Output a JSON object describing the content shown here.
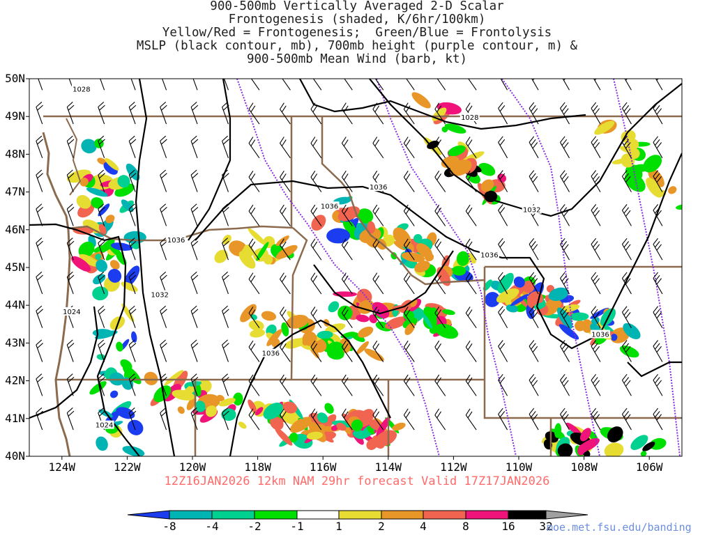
{
  "title": {
    "line1": "900-500mb Vertically Averaged 2-D Scalar",
    "line2": "Frontogenesis (shaded, K/6hr/100km)",
    "line3": "Yellow/Red = Frontogenesis;  Green/Blue = Frontolysis",
    "line4": "MSLP (black contour, mb), 700mb height (purple contour, m) &",
    "line5": "900-500mb Mean Wind (barb, kt)"
  },
  "valid_line": "12Z16JAN2026 12km NAM 29hr forecast Valid 17Z17JAN2026",
  "credit": "moe.met.fsu.edu/banding",
  "axes": {
    "lat_labels": [
      "50N",
      "49N",
      "48N",
      "47N",
      "46N",
      "45N",
      "44N",
      "43N",
      "42N",
      "41N",
      "40N"
    ],
    "lon_labels": [
      "124W",
      "122W",
      "120W",
      "118W",
      "116W",
      "114W",
      "112W",
      "110W",
      "108W",
      "106W"
    ]
  },
  "contour_labels": [
    {
      "text": "1028",
      "lon": -123.4,
      "lat": 49.7
    },
    {
      "text": "1028",
      "lon": -111.5,
      "lat": 48.95
    },
    {
      "text": "1036",
      "lon": -114.3,
      "lat": 47.1
    },
    {
      "text": "1036",
      "lon": -115.8,
      "lat": 46.6
    },
    {
      "text": "1032",
      "lon": -109.6,
      "lat": 46.5
    },
    {
      "text": "1036",
      "lon": -120.5,
      "lat": 45.7
    },
    {
      "text": "1036",
      "lon": -110.9,
      "lat": 45.3
    },
    {
      "text": "1032",
      "lon": -121.0,
      "lat": 44.25
    },
    {
      "text": "1024",
      "lon": -123.7,
      "lat": 43.8
    },
    {
      "text": "1036",
      "lon": -117.6,
      "lat": 42.7
    },
    {
      "text": "1036",
      "lon": -107.5,
      "lat": 43.2
    },
    {
      "text": "1024",
      "lon": -122.7,
      "lat": 40.8
    }
  ],
  "colorbar": {
    "ticks": [
      "-8",
      "-4",
      "-2",
      "-1",
      "1",
      "2",
      "4",
      "8",
      "16",
      "32"
    ],
    "colors": {
      "lt_minus8": "#1c3cf0",
      "m8_m4": "#00b4b4",
      "m4_m2": "#00d090",
      "m2_m1": "#00e000",
      "m1_p1": "#ffffff",
      "p1_p2": "#e6dc32",
      "p2_p4": "#e89628",
      "p4_p8": "#f06450",
      "p8_p16": "#f0147a",
      "p16_p32": "#000000",
      "gt_32": "#a0a0a0"
    }
  },
  "colors": {
    "mslp_contour": "#000000",
    "height_contour": "#8a2be2",
    "state_border": "#8b6a4e",
    "coastline": "#8b6a4e",
    "valid_text": "#ff6a6a",
    "credit_text": "#6b8ee0"
  }
}
